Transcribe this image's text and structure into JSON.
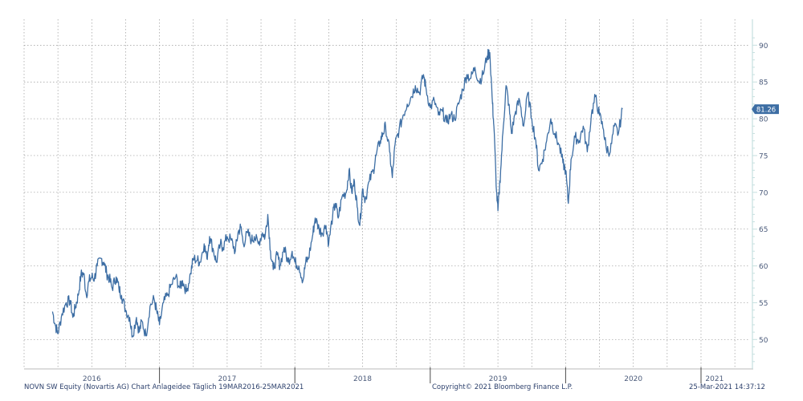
{
  "chart_data": {
    "type": "line",
    "ylim": [
      46,
      92
    ],
    "x_range": [
      2016.21,
      2021.23
    ],
    "yticks": [
      50,
      55,
      60,
      65,
      70,
      75,
      80,
      85,
      90
    ],
    "xtick_labels": [
      {
        "label": "2016",
        "x": 2016.5
      },
      {
        "label": "2017",
        "x": 2017.5
      },
      {
        "label": "2018",
        "x": 2018.5
      },
      {
        "label": "2019",
        "x": 2019.5
      },
      {
        "label": "2020",
        "x": 2020.5
      },
      {
        "label": "2021",
        "x": 2021.1
      }
    ],
    "year_boundaries": [
      2017.0,
      2018.0,
      2019.0,
      2020.0,
      2021.0
    ],
    "vertical_grid": [
      2016.0,
      2016.25,
      2016.5,
      2016.75,
      2017.0,
      2017.25,
      2017.5,
      2017.75,
      2018.0,
      2018.25,
      2018.5,
      2018.75,
      2019.0,
      2019.25,
      2019.5,
      2019.75,
      2020.0,
      2020.25,
      2020.5,
      2020.75,
      2021.0,
      2021.25
    ],
    "grid": true,
    "series": [
      {
        "color": "#3d6ea4",
        "points": [
          [
            2016.21,
            53.8
          ],
          [
            2016.23,
            52.0
          ],
          [
            2016.25,
            50.8
          ],
          [
            2016.28,
            53.5
          ],
          [
            2016.31,
            55.0
          ],
          [
            2016.34,
            55.3
          ],
          [
            2016.36,
            53.0
          ],
          [
            2016.38,
            54.5
          ],
          [
            2016.4,
            56.0
          ],
          [
            2016.42,
            58.8
          ],
          [
            2016.44,
            59.0
          ],
          [
            2016.46,
            56.0
          ],
          [
            2016.48,
            58.0
          ],
          [
            2016.5,
            58.5
          ],
          [
            2016.52,
            58.3
          ],
          [
            2016.54,
            60.0
          ],
          [
            2016.57,
            61.0
          ],
          [
            2016.59,
            60.5
          ],
          [
            2016.61,
            59.0
          ],
          [
            2016.63,
            58.3
          ],
          [
            2016.65,
            57.0
          ],
          [
            2016.68,
            58.5
          ],
          [
            2016.7,
            57.0
          ],
          [
            2016.72,
            56.0
          ],
          [
            2016.75,
            54.0
          ],
          [
            2016.78,
            53.0
          ],
          [
            2016.8,
            50.5
          ],
          [
            2016.83,
            53.0
          ],
          [
            2016.85,
            51.0
          ],
          [
            2016.87,
            52.5
          ],
          [
            2016.9,
            50.5
          ],
          [
            2016.93,
            54.5
          ],
          [
            2016.96,
            55.5
          ],
          [
            2016.98,
            53.8
          ],
          [
            2017.0,
            52.0
          ],
          [
            2017.03,
            55.0
          ],
          [
            2017.06,
            56.0
          ],
          [
            2017.09,
            57.5
          ],
          [
            2017.12,
            58.5
          ],
          [
            2017.15,
            57.0
          ],
          [
            2017.17,
            58.0
          ],
          [
            2017.2,
            56.5
          ],
          [
            2017.23,
            59.0
          ],
          [
            2017.25,
            61.0
          ],
          [
            2017.28,
            60.8
          ],
          [
            2017.3,
            60.5
          ],
          [
            2017.33,
            63.0
          ],
          [
            2017.35,
            61.0
          ],
          [
            2017.37,
            64.0
          ],
          [
            2017.4,
            62.0
          ],
          [
            2017.42,
            60.5
          ],
          [
            2017.45,
            63.0
          ],
          [
            2017.47,
            62.5
          ],
          [
            2017.5,
            64.0
          ],
          [
            2017.53,
            63.5
          ],
          [
            2017.56,
            62.0
          ],
          [
            2017.58,
            64.5
          ],
          [
            2017.6,
            65.3
          ],
          [
            2017.62,
            63.0
          ],
          [
            2017.65,
            64.5
          ],
          [
            2017.68,
            63.5
          ],
          [
            2017.7,
            64.0
          ],
          [
            2017.73,
            63.0
          ],
          [
            2017.76,
            64.5
          ],
          [
            2017.78,
            64.0
          ],
          [
            2017.8,
            67.0
          ],
          [
            2017.82,
            62.0
          ],
          [
            2017.84,
            59.5
          ],
          [
            2017.87,
            61.5
          ],
          [
            2017.89,
            60.0
          ],
          [
            2017.92,
            62.5
          ],
          [
            2017.95,
            60.5
          ],
          [
            2017.98,
            62.0
          ],
          [
            2018.0,
            60.5
          ],
          [
            2018.03,
            60.0
          ],
          [
            2018.06,
            58.0
          ],
          [
            2018.08,
            60.5
          ],
          [
            2018.1,
            61.0
          ],
          [
            2018.13,
            64.0
          ],
          [
            2018.15,
            66.5
          ],
          [
            2018.18,
            65.0
          ],
          [
            2018.2,
            64.5
          ],
          [
            2018.23,
            65.5
          ],
          [
            2018.25,
            63.0
          ],
          [
            2018.28,
            67.0
          ],
          [
            2018.3,
            68.5
          ],
          [
            2018.32,
            66.5
          ],
          [
            2018.35,
            69.5
          ],
          [
            2018.38,
            70.0
          ],
          [
            2018.4,
            73.0
          ],
          [
            2018.42,
            70.0
          ],
          [
            2018.44,
            71.5
          ],
          [
            2018.46,
            68.0
          ],
          [
            2018.48,
            65.5
          ],
          [
            2018.5,
            70.5
          ],
          [
            2018.52,
            69.0
          ],
          [
            2018.55,
            71.5
          ],
          [
            2018.58,
            73.0
          ],
          [
            2018.6,
            75.0
          ],
          [
            2018.63,
            77.0
          ],
          [
            2018.65,
            78.0
          ],
          [
            2018.67,
            79.0
          ],
          [
            2018.7,
            75.5
          ],
          [
            2018.72,
            72.0
          ],
          [
            2018.74,
            76.5
          ],
          [
            2018.77,
            78.5
          ],
          [
            2018.8,
            80.5
          ],
          [
            2018.83,
            82.0
          ],
          [
            2018.86,
            83.0
          ],
          [
            2018.89,
            84.5
          ],
          [
            2018.92,
            83.5
          ],
          [
            2018.95,
            86.0
          ],
          [
            2018.97,
            84.0
          ],
          [
            2019.0,
            81.5
          ],
          [
            2019.03,
            82.5
          ],
          [
            2019.06,
            80.5
          ],
          [
            2019.09,
            81.0
          ],
          [
            2019.12,
            79.5
          ],
          [
            2019.15,
            80.5
          ],
          [
            2019.18,
            80.0
          ],
          [
            2019.21,
            82.0
          ],
          [
            2019.24,
            84.0
          ],
          [
            2019.27,
            86.0
          ],
          [
            2019.3,
            85.5
          ],
          [
            2019.33,
            87.0
          ],
          [
            2019.36,
            85.0
          ],
          [
            2019.39,
            86.0
          ],
          [
            2019.42,
            88.5
          ],
          [
            2019.44,
            89.0
          ],
          [
            2019.46,
            82.0
          ],
          [
            2019.47,
            79.0
          ],
          [
            2019.49,
            70.0
          ],
          [
            2019.5,
            67.5
          ],
          [
            2019.52,
            73.0
          ],
          [
            2019.54,
            79.0
          ],
          [
            2019.56,
            84.5
          ],
          [
            2019.58,
            82.0
          ],
          [
            2019.6,
            78.0
          ],
          [
            2019.63,
            81.0
          ],
          [
            2019.66,
            82.5
          ],
          [
            2019.69,
            79.0
          ],
          [
            2019.72,
            83.5
          ],
          [
            2019.75,
            80.0
          ],
          [
            2019.78,
            77.0
          ],
          [
            2019.8,
            73.0
          ],
          [
            2019.83,
            74.5
          ],
          [
            2019.86,
            77.0
          ],
          [
            2019.89,
            80.0
          ],
          [
            2019.92,
            78.0
          ],
          [
            2019.95,
            76.5
          ],
          [
            2019.98,
            74.0
          ],
          [
            2020.0,
            73.0
          ],
          [
            2020.02,
            68.5
          ],
          [
            2020.04,
            74.5
          ],
          [
            2020.07,
            77.5
          ],
          [
            2020.1,
            77.0
          ],
          [
            2020.13,
            79.0
          ],
          [
            2020.16,
            75.5
          ],
          [
            2020.19,
            80.5
          ],
          [
            2020.22,
            83.0
          ],
          [
            2020.25,
            80.5
          ],
          [
            2020.28,
            78.5
          ],
          [
            2020.3,
            76.0
          ],
          [
            2020.33,
            75.5
          ],
          [
            2020.36,
            79.0
          ],
          [
            2020.39,
            78.0
          ],
          [
            2020.42,
            81.3
          ]
        ]
      }
    ],
    "last_value_label": "81.26"
  },
  "footer": {
    "left": "NOVN SW Equity (Novartis AG) Chart Anlageidee  Täglich 19MAR2016-25MAR2021",
    "center": "Copyright© 2021 Bloomberg Finance L.P.",
    "right": "25-Mar-2021 14:37:12"
  },
  "colors": {
    "line": "#3d6ea4",
    "grid": "#9a9a9a",
    "axis": "#c6e0df",
    "badge": "#3d6ea4",
    "tick_text": "#4a5a7a"
  }
}
